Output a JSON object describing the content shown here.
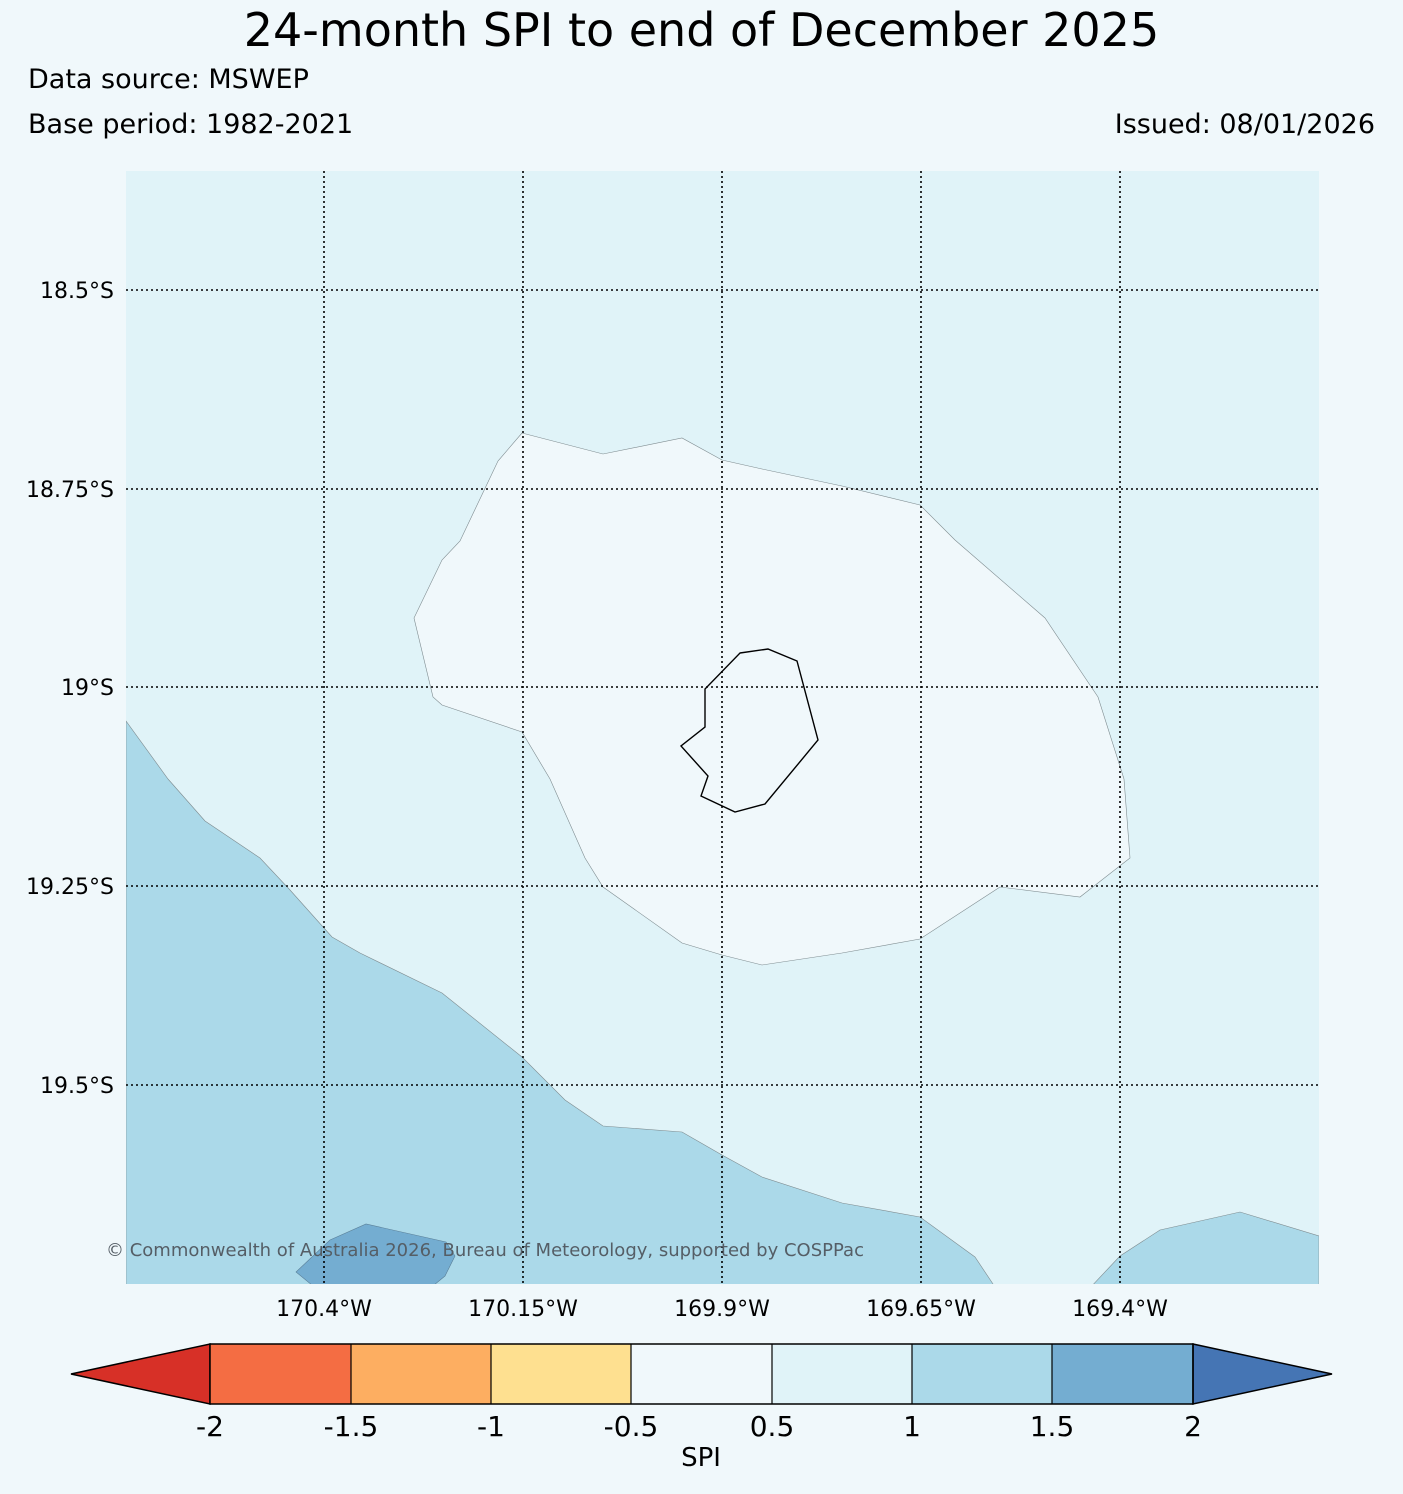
{
  "title": "24-month SPI to end of December 2025",
  "data_source": "Data source: MSWEP",
  "base_period": "Base period: 1982-2021",
  "issued": "Issued: 08/01/2026",
  "map": {
    "latitude_labels": [
      "18.5°S",
      "18.75°S",
      "19°S",
      "19.25°S",
      "19.5°S"
    ],
    "longitude_labels": [
      "170.4°W",
      "170.15°W",
      "169.9°W",
      "169.65°W",
      "169.4°W"
    ],
    "copyright": "© Commonwealth of Australia 2026, Bureau of Meteorology, supported by COSPPac"
  },
  "colorbar": {
    "label": "SPI",
    "ticks": [
      "-2",
      "-1.5",
      "-1",
      "-0.5",
      "0.5",
      "1",
      "1.5",
      "2"
    ],
    "colors": {
      "below_-2": "#d73027",
      "-2_to_-1.5": "#f46d43",
      "-1.5_to_-1": "#fdae61",
      "-1_to_-0.5": "#fee090",
      "-0.5_to_0.5": "#f0f8fb",
      "0.5_to_1": "#e0f3f8",
      "1_to_1.5": "#abd9e9",
      "1.5_to_2": "#74add1",
      "above_2": "#4575b4"
    }
  }
}
